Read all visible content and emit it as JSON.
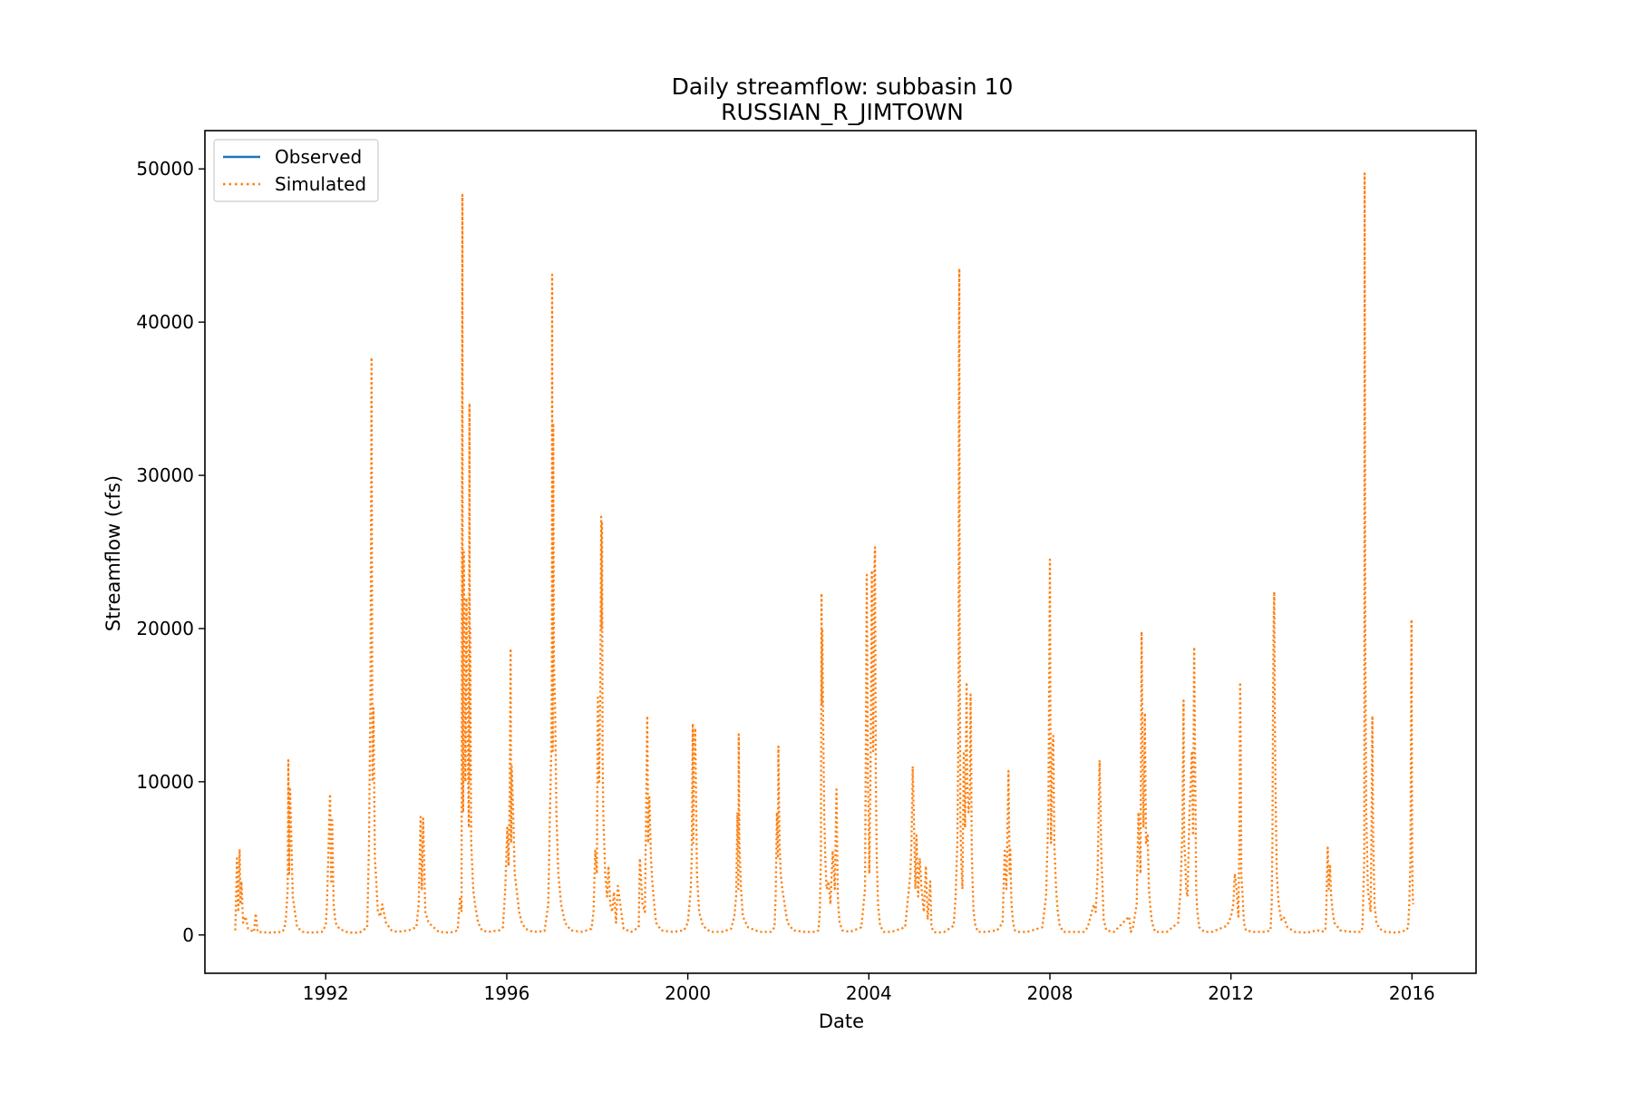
{
  "chart_data": {
    "type": "line",
    "title": "Daily streamflow: subbasin 10",
    "subtitle": "RUSSIAN_R_JIMTOWN",
    "xlabel": "Date",
    "ylabel": "Streamflow (cfs)",
    "xlim": [
      "1989-05-01",
      "2017-06-01"
    ],
    "ylim": [
      -2500,
      52500
    ],
    "x_ticks": [
      "1992",
      "1996",
      "2000",
      "2004",
      "2008",
      "2012",
      "2016"
    ],
    "y_ticks": [
      "0",
      "10000",
      "20000",
      "30000",
      "40000",
      "50000"
    ],
    "grid": false,
    "legend": "top-left",
    "colors": {
      "observed": "#1f77b4",
      "simulated": "#ff7f0e"
    },
    "series": [
      {
        "name": "Observed",
        "style": "solid",
        "color": "#1f77b4",
        "x": [],
        "y": []
      },
      {
        "name": "Simulated",
        "style": "dotted",
        "color": "#ff7f0e",
        "x": [
          "1990-01-01",
          "1990-01-15",
          "1990-01-25",
          "1990-02-05",
          "1990-02-12",
          "1990-02-20",
          "1990-03-05",
          "1990-03-25",
          "1990-04-15",
          "1990-06-01",
          "1990-06-15",
          "1990-07-01",
          "1990-10-01",
          "1991-01-15",
          "1991-02-01",
          "1991-02-15",
          "1991-02-28",
          "1991-03-05",
          "1991-03-12",
          "1991-03-20",
          "1991-04-10",
          "1991-05-15",
          "1991-07-01",
          "1991-09-01",
          "1991-12-01",
          "1992-01-01",
          "1992-01-10",
          "1992-02-05",
          "1992-02-14",
          "1992-02-22",
          "1992-03-05",
          "1992-03-20",
          "1992-04-20",
          "1992-07-01",
          "1992-10-01",
          "1992-12-01",
          "1992-12-15",
          "1992-12-28",
          "1993-01-05",
          "1993-01-12",
          "1993-01-20",
          "1993-02-01",
          "1993-02-12",
          "1993-02-25",
          "1993-03-15",
          "1993-04-01",
          "1993-05-01",
          "1993-06-15",
          "1993-08-01",
          "1993-11-01",
          "1994-01-01",
          "1994-01-20",
          "1994-02-05",
          "1994-02-15",
          "1994-02-25",
          "1994-03-15",
          "1994-04-10",
          "1994-07-01",
          "1994-10-01",
          "1994-12-01",
          "1994-12-20",
          "1995-01-01",
          "1995-01-05",
          "1995-01-08",
          "1995-01-10",
          "1995-01-14",
          "1995-01-20",
          "1995-02-01",
          "1995-02-10",
          "1995-02-20",
          "1995-03-01",
          "1995-03-06",
          "1995-03-10",
          "1995-03-12",
          "1995-03-20",
          "1995-04-05",
          "1995-04-20",
          "1995-05-15",
          "1995-06-15",
          "1995-08-01",
          "1995-11-01",
          "1995-12-01",
          "1995-12-20",
          "1996-01-05",
          "1996-01-15",
          "1996-01-25",
          "1996-02-01",
          "1996-02-05",
          "1996-02-10",
          "1996-02-20",
          "1996-03-05",
          "1996-03-20",
          "1996-04-10",
          "1996-05-01",
          "1996-06-01",
          "1996-08-01",
          "1996-11-01",
          "1996-12-01",
          "1996-12-15",
          "1996-12-25",
          "1996-12-30",
          "1997-01-01",
          "1997-01-03",
          "1997-01-06",
          "1997-01-10",
          "1997-01-15",
          "1997-01-25",
          "1997-02-05",
          "1997-02-20",
          "1997-03-15",
          "1997-04-15",
          "1997-06-01",
          "1997-09-01",
          "1997-11-15",
          "1997-12-01",
          "1997-12-15",
          "1997-12-28",
          "1998-01-05",
          "1998-01-15",
          "1998-01-25",
          "1998-02-01",
          "1998-02-05",
          "1998-02-08",
          "1998-02-12",
          "1998-02-18",
          "1998-02-25",
          "1998-03-05",
          "1998-03-20",
          "1998-04-01",
          "1998-04-15",
          "1998-05-01",
          "1998-05-15",
          "1998-06-01",
          "1998-06-15",
          "1998-08-01",
          "1998-10-01",
          "1998-12-01",
          "1998-12-10",
          "1999-01-01",
          "1999-01-20",
          "1999-02-01",
          "1999-02-08",
          "1999-02-15",
          "1999-02-25",
          "1999-03-10",
          "1999-03-20",
          "1999-04-05",
          "1999-04-20",
          "1999-06-01",
          "1999-09-01",
          "1999-12-01",
          "2000-01-01",
          "2000-01-15",
          "2000-01-25",
          "2000-02-01",
          "2000-02-10",
          "2000-02-14",
          "2000-02-20",
          "2000-03-01",
          "2000-03-15",
          "2000-04-01",
          "2000-05-01",
          "2000-07-01",
          "2000-10-01",
          "2000-12-15",
          "2001-01-10",
          "2001-01-25",
          "2001-02-05",
          "2001-02-12",
          "2001-02-15",
          "2001-02-20",
          "2001-03-05",
          "2001-03-20",
          "2001-05-01",
          "2001-08-01",
          "2001-11-01",
          "2001-12-01",
          "2001-12-10",
          "2001-12-20",
          "2001-12-28",
          "2002-01-01",
          "2002-01-10",
          "2002-01-20",
          "2002-02-01",
          "2002-02-20",
          "2002-03-15",
          "2002-05-01",
          "2002-08-01",
          "2002-11-01",
          "2002-11-20",
          "2002-12-01",
          "2002-12-10",
          "2002-12-15",
          "2002-12-18",
          "2002-12-22",
          "2002-12-28",
          "2003-01-05",
          "2003-01-15",
          "2003-01-25",
          "2003-02-10",
          "2003-02-25",
          "2003-03-15",
          "2003-04-01",
          "2003-04-15",
          "2003-04-25",
          "2003-05-10",
          "2003-06-01",
          "2003-08-01",
          "2003-11-01",
          "2003-12-01",
          "2003-12-15",
          "2003-12-25",
          "2003-12-30",
          "2004-01-05",
          "2004-01-15",
          "2004-01-25",
          "2004-02-05",
          "2004-02-15",
          "2004-02-20",
          "2004-02-26",
          "2004-03-05",
          "2004-03-15",
          "2004-04-01",
          "2004-05-01",
          "2004-07-01",
          "2004-10-20",
          "2004-12-01",
          "2004-12-10",
          "2004-12-20",
          "2004-12-31",
          "2005-01-10",
          "2005-01-20",
          "2005-02-01",
          "2005-02-15",
          "2005-03-01",
          "2005-03-20",
          "2005-04-05",
          "2005-04-20",
          "2005-05-10",
          "2005-05-20",
          "2005-06-10",
          "2005-07-01",
          "2005-09-01",
          "2005-11-15",
          "2005-12-01",
          "2005-12-15",
          "2005-12-25",
          "2005-12-28",
          "2005-12-31",
          "2006-01-03",
          "2006-01-08",
          "2006-01-15",
          "2006-01-25",
          "2006-02-05",
          "2006-02-15",
          "2006-02-28",
          "2006-03-05",
          "2006-03-15",
          "2006-03-25",
          "2006-04-01",
          "2006-04-05",
          "2006-04-10",
          "2006-04-15",
          "2006-04-25",
          "2006-05-10",
          "2006-06-01",
          "2006-08-01",
          "2006-11-01",
          "2006-12-15",
          "2007-01-01",
          "2007-01-15",
          "2007-02-01",
          "2007-02-10",
          "2007-02-15",
          "2007-02-25",
          "2007-03-10",
          "2007-03-25",
          "2007-04-20",
          "2007-07-01",
          "2007-11-01",
          "2007-12-01",
          "2007-12-20",
          "2008-01-01",
          "2008-01-05",
          "2008-01-10",
          "2008-01-20",
          "2008-01-28",
          "2008-02-05",
          "2008-02-20",
          "2008-03-05",
          "2008-03-20",
          "2008-04-20",
          "2008-07-01",
          "2008-10-01",
          "2008-11-01",
          "2008-12-20",
          "2009-01-05",
          "2009-01-20",
          "2009-02-05",
          "2009-02-15",
          "2009-02-20",
          "2009-03-01",
          "2009-03-10",
          "2009-04-01",
          "2009-06-01",
          "2009-10-01",
          "2009-10-15",
          "2009-11-01",
          "2009-12-01",
          "2009-12-15",
          "2010-01-01",
          "2010-01-10",
          "2010-01-20",
          "2010-01-25",
          "2010-02-05",
          "2010-02-15",
          "2010-02-28",
          "2010-03-10",
          "2010-03-20",
          "2010-04-01",
          "2010-04-15",
          "2010-05-01",
          "2010-06-01",
          "2010-08-01",
          "2010-11-01",
          "2010-11-20",
          "2010-12-05",
          "2010-12-15",
          "2010-12-20",
          "2010-12-28",
          "2011-01-05",
          "2011-01-15",
          "2011-02-01",
          "2011-02-20",
          "2011-03-01",
          "2011-03-10",
          "2011-03-18",
          "2011-03-26",
          "2011-04-05",
          "2011-04-20",
          "2011-06-01",
          "2011-08-01",
          "2011-11-01",
          "2011-12-01",
          "2012-01-01",
          "2012-01-20",
          "2012-02-01",
          "2012-02-15",
          "2012-03-01",
          "2012-03-10",
          "2012-03-15",
          "2012-03-20",
          "2012-03-25",
          "2012-04-05",
          "2012-04-15",
          "2012-05-01",
          "2012-07-01",
          "2012-10-01",
          "2012-11-15",
          "2012-11-25",
          "2012-12-01",
          "2012-12-05",
          "2012-12-10",
          "2012-12-15",
          "2012-12-20",
          "2012-12-25",
          "2013-01-05",
          "2013-01-20",
          "2013-02-10",
          "2013-03-01",
          "2013-04-01",
          "2013-06-01",
          "2013-09-01",
          "2013-12-01",
          "2014-01-01",
          "2014-02-01",
          "2014-02-08",
          "2014-02-14",
          "2014-02-20",
          "2014-02-28",
          "2014-03-10",
          "2014-03-20",
          "2014-04-01",
          "2014-04-15",
          "2014-06-01",
          "2014-09-01",
          "2014-11-15",
          "2014-11-28",
          "2014-12-05",
          "2014-12-12",
          "2014-12-15",
          "2014-12-20",
          "2014-12-28",
          "2015-01-10",
          "2015-02-01",
          "2015-02-08",
          "2015-02-15",
          "2015-02-22",
          "2015-03-05",
          "2015-03-20",
          "2015-04-15",
          "2015-06-01",
          "2015-09-01",
          "2015-11-15",
          "2015-12-01",
          "2015-12-10",
          "2015-12-20",
          "2015-12-28",
          "2016-01-01",
          "2016-01-03",
          "2016-01-06",
          "2016-01-10"
        ],
        "y": [
          300,
          5000,
          1500,
          5600,
          2000,
          3500,
          800,
          1200,
          400,
          200,
          1400,
          200,
          150,
          200,
          400,
          1200,
          3000,
          11400,
          4000,
          9500,
          2500,
          500,
          200,
          150,
          200,
          600,
          1800,
          9200,
          3500,
          7500,
          2000,
          800,
          400,
          150,
          150,
          500,
          6000,
          16500,
          37700,
          10000,
          14800,
          5000,
          3500,
          1500,
          1200,
          2000,
          800,
          300,
          200,
          300,
          500,
          2000,
          7700,
          3000,
          7600,
          1500,
          800,
          200,
          150,
          300,
          2500,
          1500,
          29000,
          48300,
          15000,
          8000,
          25000,
          10000,
          22000,
          12000,
          7000,
          34700,
          10000,
          20000,
          6000,
          3000,
          2000,
          800,
          300,
          200,
          300,
          500,
          3000,
          7000,
          4500,
          9500,
          18700,
          6000,
          11000,
          8500,
          4000,
          3000,
          1500,
          800,
          400,
          200,
          250,
          2000,
          8000,
          12000,
          18000,
          43100,
          25000,
          12000,
          33400,
          18000,
          15000,
          8000,
          4000,
          2000,
          800,
          300,
          200,
          400,
          1500,
          5500,
          4000,
          15500,
          10000,
          16000,
          27300,
          20000,
          27000,
          12000,
          8000,
          6000,
          4000,
          2500,
          4500,
          2000,
          1500,
          2800,
          800,
          3200,
          400,
          200,
          500,
          5000,
          2000,
          1500,
          10000,
          14300,
          6000,
          9000,
          5000,
          3500,
          2000,
          800,
          300,
          200,
          300,
          800,
          2000,
          3000,
          5000,
          13800,
          6000,
          11000,
          13500,
          4000,
          1500,
          600,
          200,
          200,
          400,
          1200,
          2500,
          8000,
          3000,
          13100,
          6000,
          3000,
          1200,
          500,
          200,
          200,
          500,
          2500,
          8000,
          5000,
          12300,
          6000,
          4000,
          3000,
          2000,
          800,
          300,
          200,
          200,
          300,
          1500,
          5000,
          22300,
          15000,
          20000,
          14000,
          8000,
          5000,
          3000,
          3500,
          2000,
          5500,
          3000,
          9500,
          2500,
          800,
          300,
          200,
          500,
          3000,
          23500,
          10000,
          8000,
          4000,
          11000,
          23800,
          12000,
          24000,
          25300,
          10000,
          5000,
          2000,
          600,
          200,
          200,
          500,
          4000,
          6000,
          11000,
          7000,
          3000,
          6500,
          2500,
          5000,
          3000,
          1500,
          4500,
          1000,
          3500,
          500,
          200,
          150,
          200,
          600,
          2500,
          6000,
          15000,
          40000,
          43500,
          20000,
          8000,
          5000,
          3000,
          12000,
          7000,
          16500,
          10000,
          8000,
          9000,
          15700,
          12000,
          6000,
          4000,
          1500,
          600,
          200,
          200,
          300,
          800,
          5500,
          3000,
          10700,
          4000,
          5700,
          2000,
          800,
          300,
          200,
          200,
          500,
          2500,
          8000,
          24500,
          15000,
          6000,
          12000,
          13000,
          6000,
          3000,
          1500,
          600,
          200,
          200,
          200,
          500,
          2000,
          1500,
          4000,
          11400,
          7000,
          5000,
          3000,
          1000,
          300,
          200,
          1200,
          200,
          500,
          2000,
          8000,
          4000,
          19800,
          10000,
          7000,
          14500,
          6000,
          6500,
          3000,
          2000,
          1000,
          500,
          200,
          200,
          200,
          800,
          2800,
          7000,
          15300,
          6000,
          5000,
          3000,
          2500,
          8000,
          12000,
          6500,
          18800,
          11000,
          3000,
          1500,
          500,
          200,
          200,
          500,
          600,
          1200,
          2000,
          4000,
          3000,
          1200,
          7000,
          16500,
          12000,
          4000,
          2500,
          800,
          300,
          200,
          200,
          300,
          2000,
          6000,
          14000,
          20000,
          22400,
          15000,
          10000,
          4000,
          2000,
          1000,
          1200,
          500,
          200,
          150,
          300,
          200,
          300,
          1500,
          4000,
          5700,
          3000,
          4500,
          2500,
          1500,
          800,
          300,
          200,
          200,
          500,
          3000,
          5000,
          49700,
          20000,
          8000,
          3000,
          1500,
          6000,
          14300,
          6000,
          2000,
          800,
          400,
          200,
          150,
          300,
          500,
          2000,
          5000,
          20600,
          10000,
          5000,
          3000,
          2000
        ]
      }
    ]
  }
}
